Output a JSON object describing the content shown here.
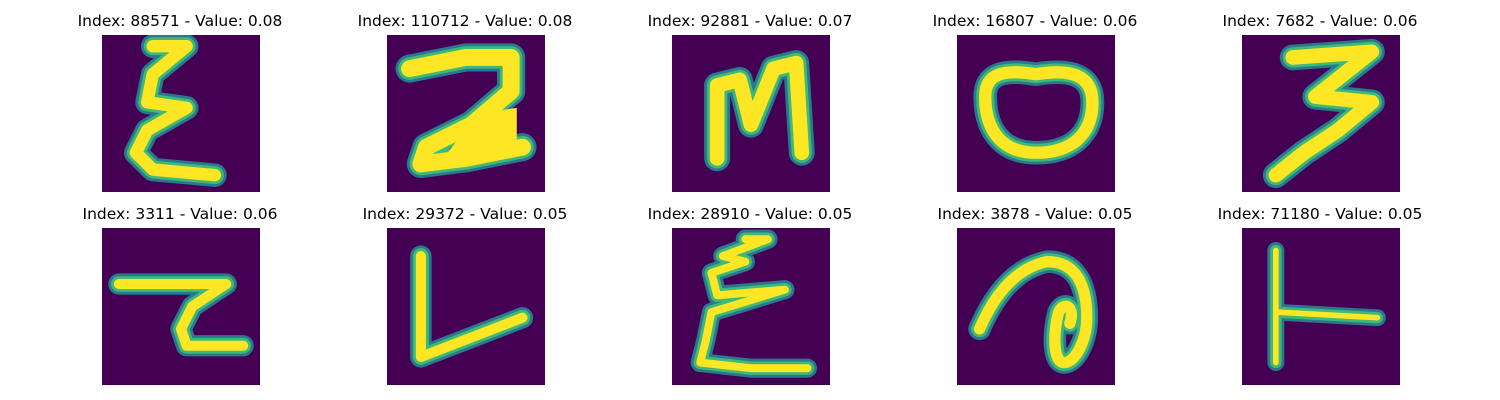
{
  "panels": [
    {
      "title": "Index: 88571 - Value: 0.08",
      "glyph": "E-like script character"
    },
    {
      "title": "Index: 110712 - Value: 0.08",
      "glyph": "2 / Z-like character"
    },
    {
      "title": "Index: 92881 - Value: 0.07",
      "glyph": "N-like character"
    },
    {
      "title": "Index: 16807 - Value: 0.06",
      "glyph": "O-like character"
    },
    {
      "title": "Index: 7682 - Value: 0.06",
      "glyph": "3-like character"
    },
    {
      "title": "Index: 3311 - Value: 0.06",
      "glyph": "hooked stroke character"
    },
    {
      "title": "Index: 29372 - Value: 0.05",
      "glyph": "L-like character"
    },
    {
      "title": "Index: 28910 - Value: 0.05",
      "glyph": "E-like script character"
    },
    {
      "title": "Index: 3878 - Value: 0.05",
      "glyph": "looped a-like character"
    },
    {
      "title": "Index: 71180 - Value: 0.05",
      "glyph": "T-like character"
    }
  ],
  "colors": {
    "background": "#440154",
    "stroke_core": "#fde725",
    "stroke_edge": "#3fb978",
    "stroke_halo": "#2a788e"
  }
}
